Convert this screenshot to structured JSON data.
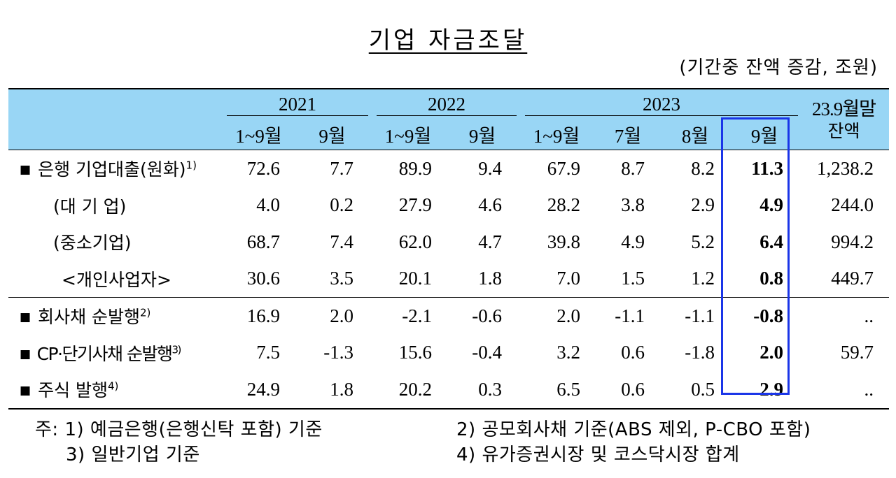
{
  "title": "기업 자금조달",
  "unit": "(기간중 잔액 증감, 조원)",
  "header": {
    "years": [
      "2021",
      "2022",
      "2023"
    ],
    "balance_label_1": "23.9월말",
    "balance_label_2": "잔액",
    "periods": [
      "1~9월",
      "9월",
      "1~9월",
      "9월",
      "1~9월",
      "7월",
      "8월",
      "9월"
    ]
  },
  "rows": [
    {
      "label": "은행 기업대출(원화)",
      "sup": "1)",
      "bullet": "■",
      "values": [
        "72.6",
        "7.7",
        "89.9",
        "9.4",
        "67.9",
        "8.7",
        "8.2",
        "11.3",
        "1,238.2"
      ]
    },
    {
      "label": "(대 기 업)",
      "sup": "",
      "bullet": "",
      "values": [
        "4.0",
        "0.2",
        "27.9",
        "4.6",
        "28.2",
        "3.8",
        "2.9",
        "4.9",
        "244.0"
      ]
    },
    {
      "label": "(중소기업)",
      "sup": "",
      "bullet": "",
      "values": [
        "68.7",
        "7.4",
        "62.0",
        "4.7",
        "39.8",
        "4.9",
        "5.2",
        "6.4",
        "994.2"
      ]
    },
    {
      "label": "<개인사업자>",
      "sup": "",
      "bullet": "",
      "values": [
        "30.6",
        "3.5",
        "20.1",
        "1.8",
        "7.0",
        "1.5",
        "1.2",
        "0.8",
        "449.7"
      ]
    },
    {
      "label": "회사채 순발행",
      "sup": "2)",
      "bullet": "■",
      "values": [
        "16.9",
        "2.0",
        "-2.1",
        "-0.6",
        "2.0",
        "-1.1",
        "-1.1",
        "-0.8",
        ".."
      ]
    },
    {
      "label": "CP·단기사채 순발행",
      "sup": "3)",
      "bullet": "■",
      "values": [
        "7.5",
        "-1.3",
        "15.6",
        "-0.4",
        "3.2",
        "0.6",
        "-1.8",
        "2.0",
        "59.7"
      ]
    },
    {
      "label": "주식 발행",
      "sup": "4)",
      "bullet": "■",
      "values": [
        "24.9",
        "1.8",
        "20.2",
        "0.3",
        "6.5",
        "0.6",
        "0.5",
        "2.9",
        ".."
      ]
    }
  ],
  "notes": {
    "n1": "주: 1) 예금은행(은행신탁 포함) 기준",
    "n2": "2) 공모회사채 기준(ABS 제외, P-CBO 포함)",
    "n3": "3) 일반기업 기준",
    "n4": "4) 유가증권시장 및 코스닥시장 합계"
  },
  "colors": {
    "header_bg": "#99d6f5",
    "highlight_border": "#1a35e8"
  }
}
